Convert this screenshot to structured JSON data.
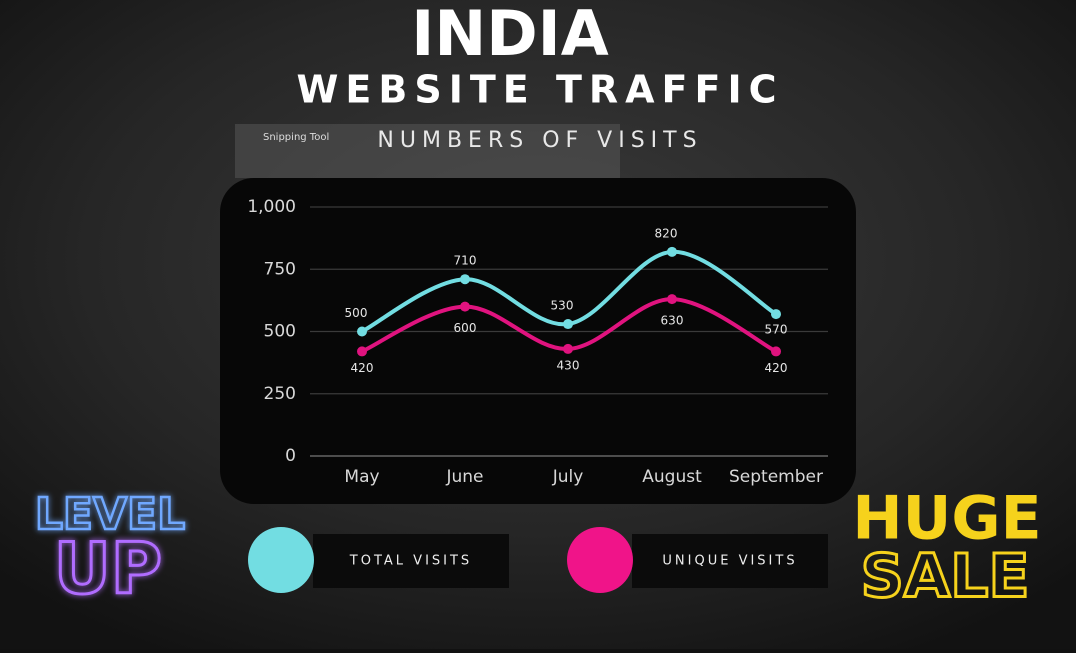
{
  "chart_data": {
    "type": "line",
    "title": "INDIA",
    "subtitle": "WEBSITE TRAFFIC",
    "caption": "NUMBERS OF VISITS",
    "categories": [
      "May",
      "June",
      "July",
      "August",
      "September"
    ],
    "series": [
      {
        "name": "TOTAL VISITS",
        "color": "#72dde2",
        "values": [
          500,
          710,
          530,
          820,
          570
        ]
      },
      {
        "name": "UNIQUE VISITS",
        "color": "#e0137f",
        "values": [
          420,
          600,
          430,
          630,
          420
        ]
      }
    ],
    "ylim": [
      0,
      1000
    ],
    "yticks": [
      0,
      250,
      500,
      750,
      {
        "value": 1000,
        "label": "1,000"
      }
    ],
    "grid": true
  },
  "overlay": "Snipping Tool",
  "badges": {
    "left": [
      "LEVEL",
      "UP"
    ],
    "right": [
      "HUGE",
      "SALE"
    ]
  }
}
